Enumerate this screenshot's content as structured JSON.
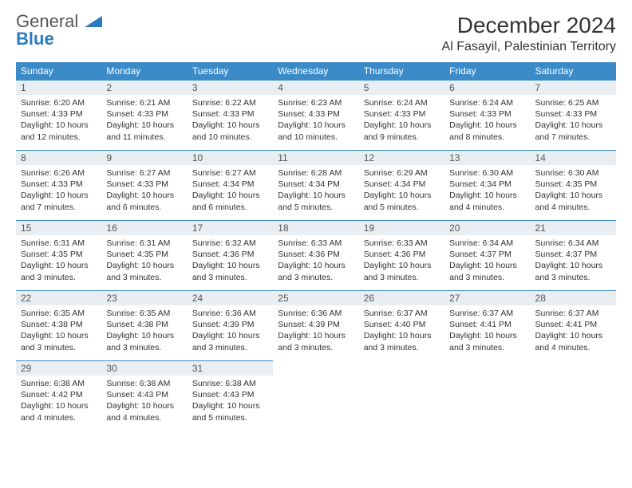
{
  "brand": {
    "name1": "General",
    "name2": "Blue"
  },
  "title": "December 2024",
  "location": "Al Fasayil, Palestinian Territory",
  "colors": {
    "header_bg": "#3b8bc9",
    "header_text": "#ffffff",
    "daynum_bg": "#e9eef2",
    "border": "#3b8bc9",
    "brand_blue": "#2b7bbf"
  },
  "weekdays": [
    "Sunday",
    "Monday",
    "Tuesday",
    "Wednesday",
    "Thursday",
    "Friday",
    "Saturday"
  ],
  "days": [
    {
      "n": "1",
      "sr": "6:20 AM",
      "ss": "4:33 PM",
      "dl": "10 hours and 12 minutes."
    },
    {
      "n": "2",
      "sr": "6:21 AM",
      "ss": "4:33 PM",
      "dl": "10 hours and 11 minutes."
    },
    {
      "n": "3",
      "sr": "6:22 AM",
      "ss": "4:33 PM",
      "dl": "10 hours and 10 minutes."
    },
    {
      "n": "4",
      "sr": "6:23 AM",
      "ss": "4:33 PM",
      "dl": "10 hours and 10 minutes."
    },
    {
      "n": "5",
      "sr": "6:24 AM",
      "ss": "4:33 PM",
      "dl": "10 hours and 9 minutes."
    },
    {
      "n": "6",
      "sr": "6:24 AM",
      "ss": "4:33 PM",
      "dl": "10 hours and 8 minutes."
    },
    {
      "n": "7",
      "sr": "6:25 AM",
      "ss": "4:33 PM",
      "dl": "10 hours and 7 minutes."
    },
    {
      "n": "8",
      "sr": "6:26 AM",
      "ss": "4:33 PM",
      "dl": "10 hours and 7 minutes."
    },
    {
      "n": "9",
      "sr": "6:27 AM",
      "ss": "4:33 PM",
      "dl": "10 hours and 6 minutes."
    },
    {
      "n": "10",
      "sr": "6:27 AM",
      "ss": "4:34 PM",
      "dl": "10 hours and 6 minutes."
    },
    {
      "n": "11",
      "sr": "6:28 AM",
      "ss": "4:34 PM",
      "dl": "10 hours and 5 minutes."
    },
    {
      "n": "12",
      "sr": "6:29 AM",
      "ss": "4:34 PM",
      "dl": "10 hours and 5 minutes."
    },
    {
      "n": "13",
      "sr": "6:30 AM",
      "ss": "4:34 PM",
      "dl": "10 hours and 4 minutes."
    },
    {
      "n": "14",
      "sr": "6:30 AM",
      "ss": "4:35 PM",
      "dl": "10 hours and 4 minutes."
    },
    {
      "n": "15",
      "sr": "6:31 AM",
      "ss": "4:35 PM",
      "dl": "10 hours and 3 minutes."
    },
    {
      "n": "16",
      "sr": "6:31 AM",
      "ss": "4:35 PM",
      "dl": "10 hours and 3 minutes."
    },
    {
      "n": "17",
      "sr": "6:32 AM",
      "ss": "4:36 PM",
      "dl": "10 hours and 3 minutes."
    },
    {
      "n": "18",
      "sr": "6:33 AM",
      "ss": "4:36 PM",
      "dl": "10 hours and 3 minutes."
    },
    {
      "n": "19",
      "sr": "6:33 AM",
      "ss": "4:36 PM",
      "dl": "10 hours and 3 minutes."
    },
    {
      "n": "20",
      "sr": "6:34 AM",
      "ss": "4:37 PM",
      "dl": "10 hours and 3 minutes."
    },
    {
      "n": "21",
      "sr": "6:34 AM",
      "ss": "4:37 PM",
      "dl": "10 hours and 3 minutes."
    },
    {
      "n": "22",
      "sr": "6:35 AM",
      "ss": "4:38 PM",
      "dl": "10 hours and 3 minutes."
    },
    {
      "n": "23",
      "sr": "6:35 AM",
      "ss": "4:38 PM",
      "dl": "10 hours and 3 minutes."
    },
    {
      "n": "24",
      "sr": "6:36 AM",
      "ss": "4:39 PM",
      "dl": "10 hours and 3 minutes."
    },
    {
      "n": "25",
      "sr": "6:36 AM",
      "ss": "4:39 PM",
      "dl": "10 hours and 3 minutes."
    },
    {
      "n": "26",
      "sr": "6:37 AM",
      "ss": "4:40 PM",
      "dl": "10 hours and 3 minutes."
    },
    {
      "n": "27",
      "sr": "6:37 AM",
      "ss": "4:41 PM",
      "dl": "10 hours and 3 minutes."
    },
    {
      "n": "28",
      "sr": "6:37 AM",
      "ss": "4:41 PM",
      "dl": "10 hours and 4 minutes."
    },
    {
      "n": "29",
      "sr": "6:38 AM",
      "ss": "4:42 PM",
      "dl": "10 hours and 4 minutes."
    },
    {
      "n": "30",
      "sr": "6:38 AM",
      "ss": "4:43 PM",
      "dl": "10 hours and 4 minutes."
    },
    {
      "n": "31",
      "sr": "6:38 AM",
      "ss": "4:43 PM",
      "dl": "10 hours and 5 minutes."
    }
  ],
  "labels": {
    "sunrise": "Sunrise:",
    "sunset": "Sunset:",
    "daylight": "Daylight:"
  }
}
